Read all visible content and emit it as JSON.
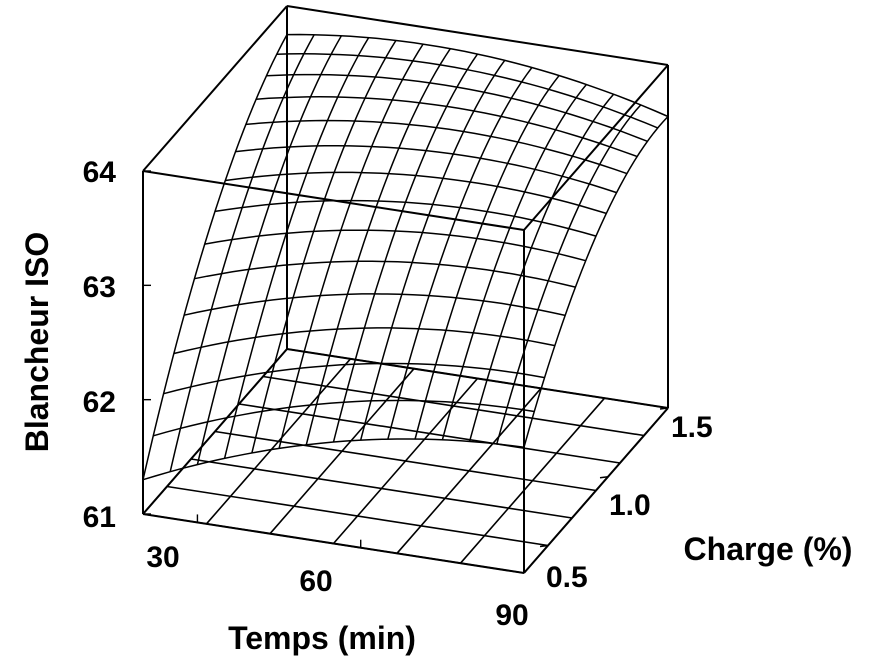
{
  "chart_data": {
    "type": "surface",
    "xlabel": "Temps (min)",
    "ylabel": "Charge (%)",
    "zlabel": "Blancheur ISO",
    "x_ticks": [
      30,
      60,
      90
    ],
    "x_tick_labels": [
      "30",
      "60",
      "90"
    ],
    "y_ticks": [
      0.5,
      1.0,
      1.5
    ],
    "y_tick_labels": [
      "0.5",
      "1.0",
      "1.5"
    ],
    "z_ticks": [
      61,
      62,
      63,
      64
    ],
    "z_tick_labels": [
      "61",
      "62",
      "63",
      "64"
    ],
    "xlim": [
      20,
      90
    ],
    "ylim": [
      0.3,
      1.5
    ],
    "zlim": [
      61,
      64
    ],
    "grid": true,
    "surface_corners": [
      {
        "x": 20,
        "y": 0.3,
        "z": 61.3
      },
      {
        "x": 20,
        "y": 1.5,
        "z": 63.75
      },
      {
        "x": 90,
        "y": 0.3,
        "z": 62.1
      },
      {
        "x": 90,
        "y": 1.5,
        "z": 63.55
      }
    ]
  }
}
